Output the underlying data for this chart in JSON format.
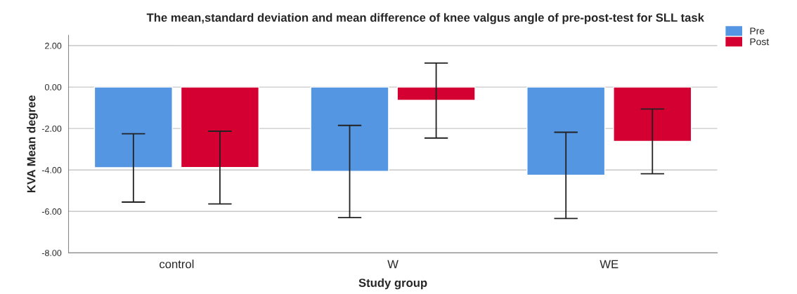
{
  "chart_data": {
    "type": "bar",
    "title": "The mean,standard deviation and mean difference of knee valgus angle of pre-post-test for SLL task",
    "xlabel": "Study group",
    "ylabel": "KVA Mean degree",
    "categories": [
      "control",
      "W",
      "WE"
    ],
    "series": [
      {
        "name": "Pre",
        "color": "#5596e3",
        "values": [
          -3.89,
          -4.07,
          -4.25
        ],
        "errors": [
          [
            -5.55,
            -2.25
          ],
          [
            -6.3,
            -1.85
          ],
          [
            -6.34,
            -2.18
          ]
        ]
      },
      {
        "name": "Post",
        "color": "#d50032",
        "values": [
          -3.88,
          -0.64,
          -2.62
        ],
        "errors": [
          [
            -5.64,
            -2.13
          ],
          [
            -2.46,
            1.16
          ],
          [
            -4.18,
            -1.06
          ]
        ]
      }
    ],
    "ylim": [
      -8,
      2.5
    ],
    "yticks": [
      {
        "value": -8,
        "label": "-8.00"
      },
      {
        "value": -6,
        "label": "-6.00"
      },
      {
        "value": -4,
        "label": "-4.00"
      },
      {
        "value": -2,
        "label": "-2.00"
      },
      {
        "value": 0,
        "label": "0.00"
      },
      {
        "value": 2,
        "label": "2.00"
      }
    ],
    "grid": "y",
    "legend": "top right"
  }
}
